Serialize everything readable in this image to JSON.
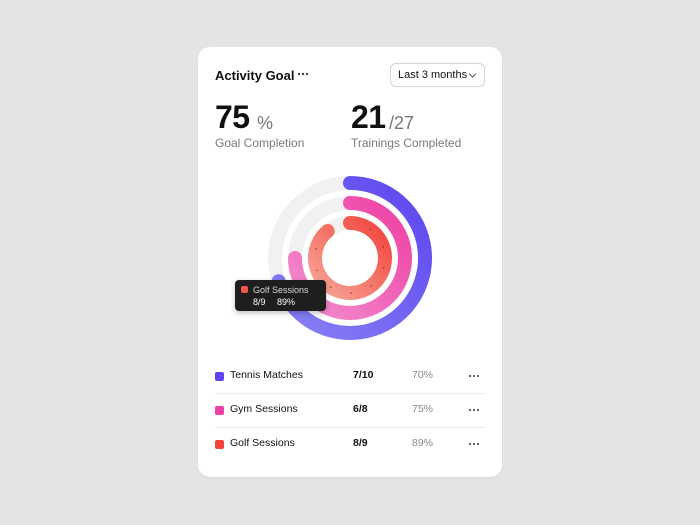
{
  "header": {
    "title": "Activity Goal",
    "more_icon": "more-horizontal-icon",
    "dropdown_value": "Last 3 months",
    "dropdown_icon": "chevron-down-icon"
  },
  "stats": {
    "completion_value": "75",
    "completion_unit": "%",
    "completion_label": "Goal Completion",
    "trainings_value": "21",
    "trainings_total": "/27",
    "trainings_label": "Trainings Completed"
  },
  "chart_data": {
    "type": "radial-bar",
    "series": [
      {
        "name": "Tennis Matches",
        "value": 0.7,
        "color_start": "#8a82f5",
        "color_end": "#5b45ee"
      },
      {
        "name": "Gym Sessions",
        "value": 0.75,
        "color_start": "#f38fcf",
        "color_end": "#ee3fa3"
      },
      {
        "name": "Golf Sessions",
        "value": 0.89,
        "color_start": "#f7a898",
        "color_end": "#f2433b"
      }
    ],
    "track_color": "#f1f1f1"
  },
  "tooltip": {
    "name": "Golf Sessions",
    "count": "8/9",
    "percent": "89%"
  },
  "rows": [
    {
      "label": "Tennis Matches",
      "count": "7/10",
      "percent": "70%",
      "color": "#5b45ee"
    },
    {
      "label": "Gym Sessions",
      "count": "6/8",
      "percent": "75%",
      "color": "#ee3fa3"
    },
    {
      "label": "Golf Sessions",
      "count": "8/9",
      "percent": "89%",
      "color": "#f2433b"
    }
  ]
}
